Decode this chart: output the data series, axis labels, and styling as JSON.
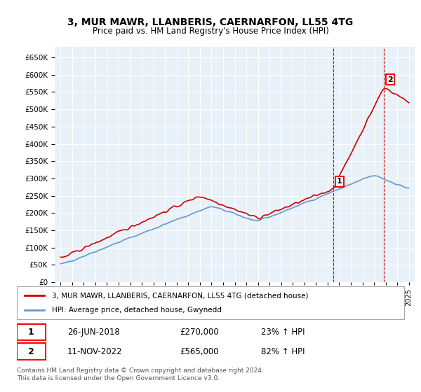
{
  "title": "3, MUR MAWR, LLANBERIS, CAERNARFON, LL55 4TG",
  "subtitle": "Price paid vs. HM Land Registry's House Price Index (HPI)",
  "legend_label_red": "3, MUR MAWR, LLANBERIS, CAERNARFON, LL55 4TG (detached house)",
  "legend_label_blue": "HPI: Average price, detached house, Gwynedd",
  "footer": "Contains HM Land Registry data © Crown copyright and database right 2024.\nThis data is licensed under the Open Government Licence v3.0.",
  "sale1_date": 2018.49,
  "sale1_label": "26-JUN-2018",
  "sale1_price": 270000,
  "sale1_pct": "23% ↑ HPI",
  "sale2_date": 2022.86,
  "sale2_label": "11-NOV-2022",
  "sale2_price": 565000,
  "sale2_pct": "82% ↑ HPI",
  "red_color": "#cc0000",
  "blue_color": "#6699cc",
  "background_plot": "#e8f0f8",
  "background_fig": "#ffffff",
  "ylim": [
    0,
    680000
  ],
  "yticks": [
    0,
    50000,
    100000,
    150000,
    200000,
    250000,
    300000,
    350000,
    400000,
    450000,
    500000,
    550000,
    600000,
    650000
  ],
  "xlim": [
    1994.5,
    2025.5
  ]
}
